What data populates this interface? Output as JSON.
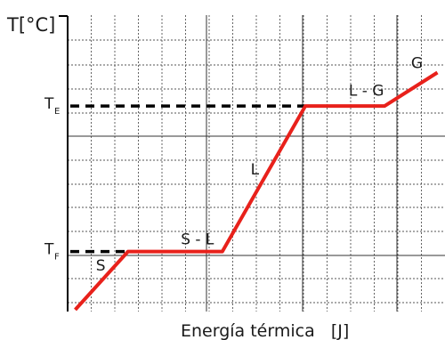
{
  "chart_data": {
    "type": "line",
    "ylabel": "T[°C]",
    "xlabel": "Energía térmica   [J]",
    "y_tick_labels": [
      {
        "main": "T",
        "sub": "E",
        "value": 100
      },
      {
        "main": "T",
        "sub": "F",
        "value": 0
      }
    ],
    "xlim": [
      0,
      10
    ],
    "ylim": [
      -40,
      160
    ],
    "grid": true,
    "series": [
      {
        "color": "#e8211b",
        "points": [
          {
            "x": 0.2,
            "y": -40
          },
          {
            "x": 1.6,
            "y": 0
          },
          {
            "x": 4.1,
            "y": 0
          },
          {
            "x": 6.3,
            "y": 100
          },
          {
            "x": 8.4,
            "y": 100
          },
          {
            "x": 9.8,
            "y": 123
          }
        ]
      }
    ],
    "reference_lines": [
      {
        "y": 100,
        "x_end": 6.3,
        "style": "dashed",
        "color": "#000000"
      },
      {
        "y": 0,
        "x_end": 1.6,
        "style": "dashed",
        "color": "#000000"
      }
    ],
    "annotations": [
      {
        "text": "S",
        "x": 0.75,
        "y": -13
      },
      {
        "text": "S - L",
        "x": 3.0,
        "y": 5
      },
      {
        "text": "L",
        "x": 4.85,
        "y": 53
      },
      {
        "text": "L - G",
        "x": 7.45,
        "y": 107
      },
      {
        "text": "G",
        "x": 9.1,
        "y": 126
      }
    ]
  }
}
